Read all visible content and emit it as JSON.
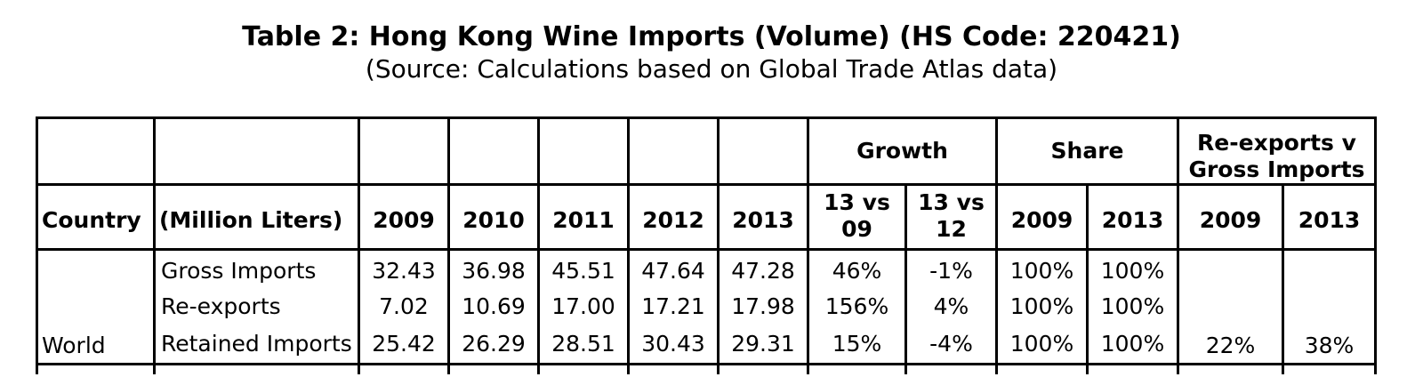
{
  "title": "Table 2: Hong Kong Wine Imports (Volume) (HS Code: 220421)",
  "subtitle": "(Source: Calculations based on Global Trade Atlas data)",
  "header": {
    "growth": "Growth",
    "share": "Share",
    "reexports_line1": "Re-exports v",
    "reexports_line2": "Gross Imports",
    "country": "Country",
    "unit": "(Million Liters)",
    "years": [
      "2009",
      "2010",
      "2011",
      "2012",
      "2013"
    ],
    "growth_cols": [
      {
        "line1": "13 vs",
        "line2": "09"
      },
      {
        "line1": "13 vs",
        "line2": "12"
      }
    ],
    "share_cols": [
      "2009",
      "2013"
    ],
    "reexport_cols": [
      "2009",
      "2013"
    ]
  },
  "rows": [
    {
      "country": "World",
      "label": "Gross Imports",
      "values": [
        "32.43",
        "36.98",
        "45.51",
        "47.64",
        "47.28"
      ],
      "growth": [
        "46%",
        "-1%"
      ],
      "share": [
        "100%",
        "100%"
      ]
    },
    {
      "country": "",
      "label": "Re-exports",
      "values": [
        "7.02",
        "10.69",
        "17.00",
        "17.21",
        "17.98"
      ],
      "growth": [
        "156%",
        "4%"
      ],
      "share": [
        "100%",
        "100%"
      ]
    },
    {
      "country": "",
      "label": "Retained Imports",
      "values": [
        "25.42",
        "26.29",
        "28.51",
        "30.43",
        "29.31"
      ],
      "growth": [
        "15%",
        "-4%"
      ],
      "share": [
        "100%",
        "100%"
      ]
    }
  ],
  "reexports_v_gross": [
    "22%",
    "38%"
  ]
}
